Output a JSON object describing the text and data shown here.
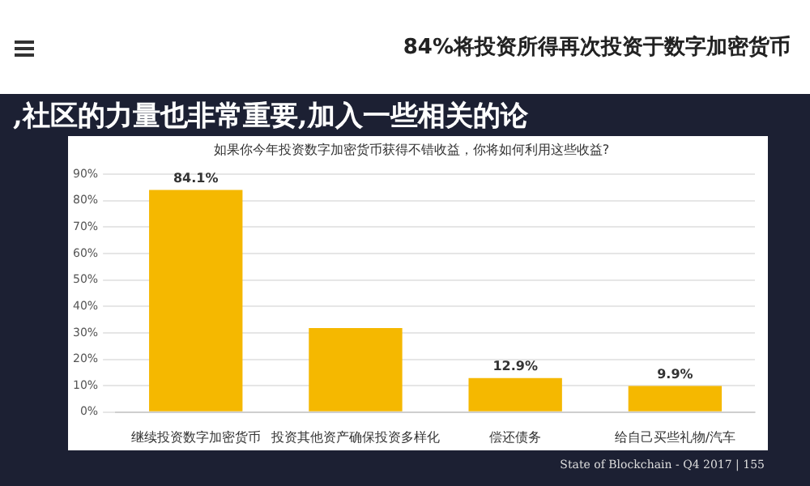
{
  "chart_data": {
    "type": "bar",
    "title": "84%将投资所得再次投资于数字加密货币",
    "subtitle": "如果你今年投资数字加密货币获得不错收益，你将如何利用这些收益?",
    "categories": [
      "继续投资数字加密货币",
      "投资其他资产确保投资多样化",
      "偿还债务",
      "给自己买些礼物/汽车"
    ],
    "values": [
      84.1,
      31.8,
      12.9,
      9.9
    ],
    "color": "#f5b800",
    "value_labels": [
      "84.1%",
      null,
      "12.9%",
      "9.9%"
    ],
    "ylim": [
      0,
      90
    ],
    "yticks": [
      {
        "value": 0,
        "label": "0%"
      },
      {
        "value": 10,
        "label": "10%"
      },
      {
        "value": 20,
        "label": "20%"
      },
      {
        "value": 30,
        "label": "30%"
      },
      {
        "value": 40,
        "label": "40%"
      },
      {
        "value": 50,
        "label": "50%"
      },
      {
        "value": 60,
        "label": "60%"
      },
      {
        "value": 70,
        "label": "70%"
      },
      {
        "value": 80,
        "label": "80%"
      },
      {
        "value": 90,
        "label": "90%"
      }
    ],
    "grid": "y",
    "legend": false,
    "annotations": [
      ",社区的力量也非常重要,加入一些相关的论",
      "State of Blockchain - Q4 2017  |  155"
    ]
  }
}
